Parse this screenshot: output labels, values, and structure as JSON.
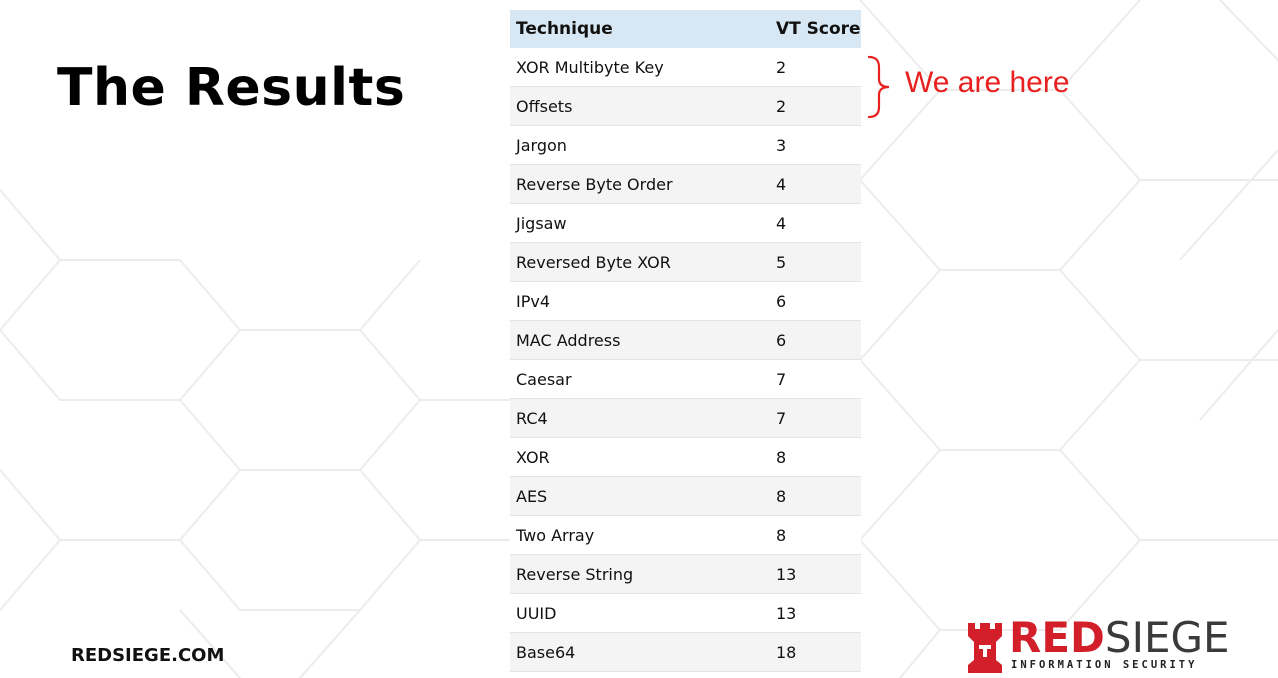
{
  "slide": {
    "title": "The Results",
    "site_url": "REDSIEGE.COM"
  },
  "table": {
    "headers": [
      "Technique",
      "VT Score"
    ],
    "rows": [
      [
        "XOR Multibyte Key",
        "2"
      ],
      [
        "Offsets",
        "2"
      ],
      [
        "Jargon",
        "3"
      ],
      [
        "Reverse Byte Order",
        "4"
      ],
      [
        "Jigsaw",
        "4"
      ],
      [
        "Reversed Byte XOR",
        "5"
      ],
      [
        "IPv4",
        "6"
      ],
      [
        "MAC Address",
        "6"
      ],
      [
        "Caesar",
        "7"
      ],
      [
        "RC4",
        "7"
      ],
      [
        "XOR",
        "8"
      ],
      [
        "AES",
        "8"
      ],
      [
        "Two Array",
        "8"
      ],
      [
        "Reverse String",
        "13"
      ],
      [
        "UUID",
        "13"
      ],
      [
        "Base64",
        "18"
      ]
    ]
  },
  "annotation": {
    "text": "We are here",
    "color": "#e8201f"
  },
  "logo": {
    "word_red": "RED",
    "word_dark": "SIEGE",
    "subtitle": "INFORMATION SECURITY",
    "icon": "castle-rook-icon",
    "red_color": "#d21f2a"
  },
  "colors": {
    "table_header_bg": "#d7e8f4",
    "stripe_bg": "#f4f4f4"
  }
}
